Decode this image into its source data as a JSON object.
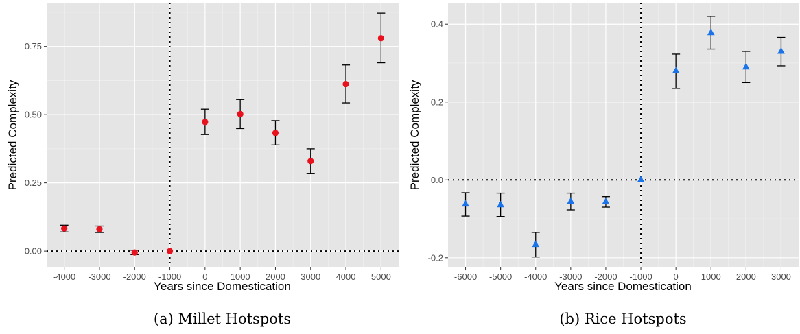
{
  "chart_data": [
    {
      "type": "scatter",
      "caption": "(a) Millet Hotspots",
      "xlabel": "Years since Domestication",
      "ylabel": "Predicted Complexity",
      "xlim": [
        -4500,
        5500
      ],
      "ylim": [
        -0.06,
        0.91
      ],
      "x_ticks": [
        -4000,
        -3000,
        -2000,
        -1000,
        0,
        1000,
        2000,
        3000,
        4000,
        5000
      ],
      "y_ticks": [
        0.0,
        0.25,
        0.5,
        0.75
      ],
      "y_tick_labels": [
        "0.00",
        "0.25",
        "0.50",
        "0.75"
      ],
      "marker": "circle",
      "color": "#e8121e",
      "vline": -1000,
      "hline": 0,
      "grid": true,
      "points": [
        {
          "x": -4000,
          "y": 0.083,
          "lo": 0.07,
          "hi": 0.095
        },
        {
          "x": -3000,
          "y": 0.08,
          "lo": 0.068,
          "hi": 0.092
        },
        {
          "x": -2000,
          "y": -0.005,
          "lo": -0.013,
          "hi": 0.003
        },
        {
          "x": -1000,
          "y": 0.0,
          "lo": 0.0,
          "hi": 0.0
        },
        {
          "x": 0,
          "y": 0.473,
          "lo": 0.427,
          "hi": 0.52
        },
        {
          "x": 1000,
          "y": 0.502,
          "lo": 0.449,
          "hi": 0.555
        },
        {
          "x": 2000,
          "y": 0.433,
          "lo": 0.389,
          "hi": 0.478
        },
        {
          "x": 3000,
          "y": 0.33,
          "lo": 0.285,
          "hi": 0.375
        },
        {
          "x": 4000,
          "y": 0.612,
          "lo": 0.543,
          "hi": 0.682
        },
        {
          "x": 5000,
          "y": 0.78,
          "lo": 0.69,
          "hi": 0.872
        }
      ]
    },
    {
      "type": "scatter",
      "caption": "(b) Rice Hotspots",
      "xlabel": "Years since Domestication",
      "ylabel": "Predicted Complexity",
      "xlim": [
        -6500,
        3500
      ],
      "ylim": [
        -0.225,
        0.455
      ],
      "x_ticks": [
        -6000,
        -5000,
        -4000,
        -3000,
        -2000,
        -1000,
        0,
        1000,
        2000,
        3000
      ],
      "y_ticks": [
        -0.2,
        0.0,
        0.2,
        0.4
      ],
      "y_tick_labels": [
        "-0.2",
        "0.0",
        "0.2",
        "0.4"
      ],
      "marker": "triangle",
      "color": "#1a73e8",
      "vline": -1000,
      "hline": 0,
      "grid": true,
      "points": [
        {
          "x": -6000,
          "y": -0.062,
          "lo": -0.093,
          "hi": -0.033
        },
        {
          "x": -5000,
          "y": -0.064,
          "lo": -0.094,
          "hi": -0.034
        },
        {
          "x": -4000,
          "y": -0.166,
          "lo": -0.198,
          "hi": -0.135
        },
        {
          "x": -3000,
          "y": -0.055,
          "lo": -0.077,
          "hi": -0.034
        },
        {
          "x": -2000,
          "y": -0.056,
          "lo": -0.07,
          "hi": -0.043
        },
        {
          "x": -1000,
          "y": 0.0,
          "lo": 0.0,
          "hi": 0.0
        },
        {
          "x": 0,
          "y": 0.28,
          "lo": 0.235,
          "hi": 0.323
        },
        {
          "x": 1000,
          "y": 0.378,
          "lo": 0.336,
          "hi": 0.42
        },
        {
          "x": 2000,
          "y": 0.29,
          "lo": 0.25,
          "hi": 0.33
        },
        {
          "x": 3000,
          "y": 0.33,
          "lo": 0.293,
          "hi": 0.366
        }
      ]
    }
  ]
}
